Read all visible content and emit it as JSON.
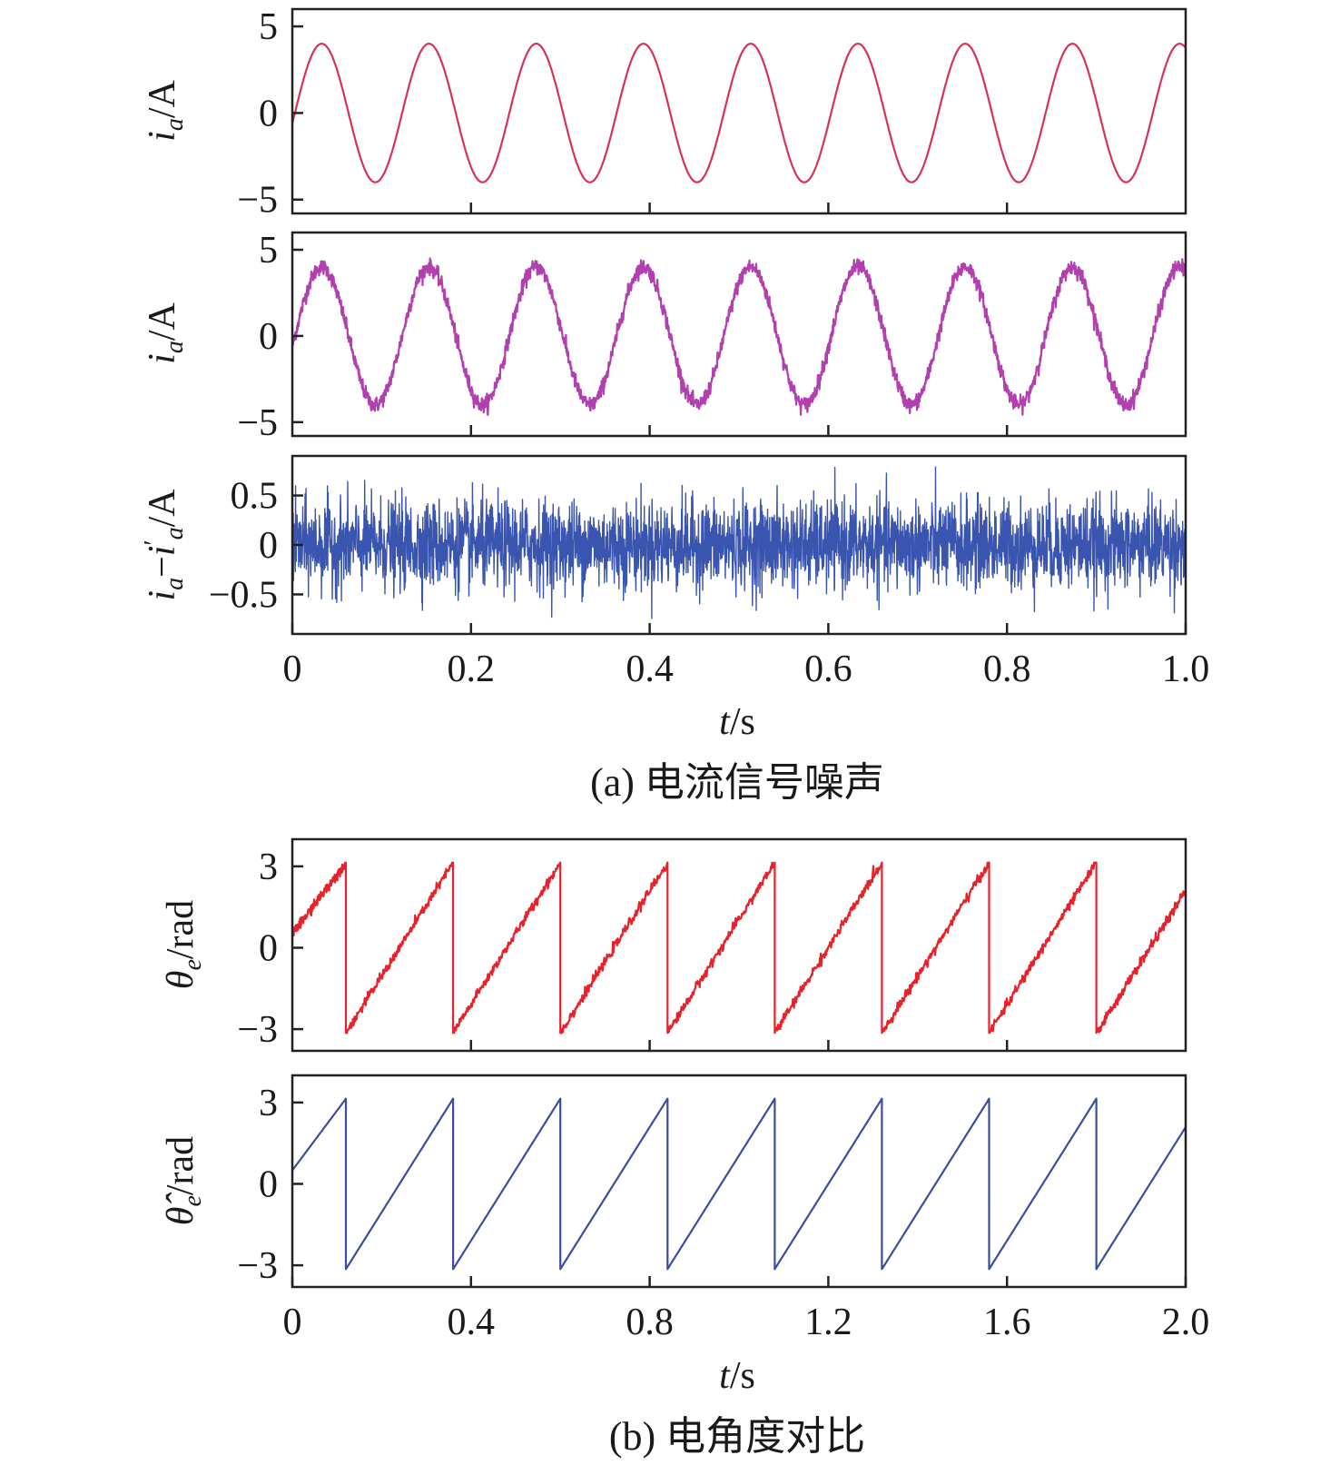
{
  "figure": {
    "caption_a": "(a) 电流信号噪声",
    "caption_b": "(b) 电角度对比"
  },
  "chart_data": [
    {
      "id": "panel-a1",
      "type": "line",
      "ylabel": "i_a/A",
      "ylim": [
        -5.8,
        6.0
      ],
      "yticks": [
        -5,
        0,
        5
      ],
      "ytick_labels": [
        "−5",
        "0",
        "5"
      ],
      "xlim": [
        0,
        1.0
      ],
      "xticks": [
        0.2,
        0.4,
        0.6,
        0.8
      ],
      "series": [
        {
          "color": "#d8325a",
          "kind": "sine",
          "amplitude": 4,
          "frequency_hz": 8.33,
          "initial_value": -0.6,
          "noise": 0
        }
      ]
    },
    {
      "id": "panel-a2",
      "type": "line",
      "ylabel": "i_a'/A",
      "ylim": [
        -5.8,
        6.0
      ],
      "yticks": [
        -5,
        0,
        5
      ],
      "ytick_labels": [
        "−5",
        "0",
        "5"
      ],
      "xlim": [
        0,
        1.0
      ],
      "xticks": [
        0.2,
        0.4,
        0.6,
        0.8
      ],
      "series": [
        {
          "color": "#b23fb0",
          "kind": "sine",
          "amplitude": 4,
          "frequency_hz": 8.33,
          "initial_value": -0.6,
          "noise": 0.45
        }
      ]
    },
    {
      "id": "panel-a3",
      "type": "line",
      "ylabel": "i_a − i_a'/A",
      "ylim": [
        -0.9,
        0.9
      ],
      "yticks": [
        -0.5,
        0,
        0.5
      ],
      "ytick_labels": [
        "−0.5",
        "0",
        "0.5"
      ],
      "xlim": [
        0,
        1.0
      ],
      "xticks": [
        0,
        0.2,
        0.4,
        0.6,
        0.8,
        1.0
      ],
      "xtick_labels": [
        "0",
        "0.2",
        "0.4",
        "0.6",
        "0.8",
        "1.0"
      ],
      "xlabel": "t/s",
      "series": [
        {
          "color": "#3a55b0",
          "kind": "noise",
          "range": [
            -0.8,
            0.8
          ]
        }
      ]
    },
    {
      "id": "panel-b1",
      "type": "line",
      "ylabel": "θ_e/rad",
      "ylim": [
        -3.8,
        4.0
      ],
      "yticks": [
        -3,
        0,
        3
      ],
      "ytick_labels": [
        "−3",
        "0",
        "3"
      ],
      "xlim": [
        0,
        2.0
      ],
      "xticks": [
        0.4,
        0.8,
        1.2,
        1.6
      ],
      "series": [
        {
          "color": "#e8222a",
          "kind": "sawtooth",
          "min": -3.14,
          "max": 3.14,
          "start": 0.5,
          "wrap_times": [
            0.12,
            0.36,
            0.6,
            0.84,
            1.08,
            1.32,
            1.56,
            1.8
          ],
          "end": 2.1,
          "noise": 0.25
        }
      ]
    },
    {
      "id": "panel-b2",
      "type": "line",
      "ylabel": "θ̂_e/rad",
      "ylim": [
        -3.8,
        4.0
      ],
      "yticks": [
        -3,
        0,
        3
      ],
      "ytick_labels": [
        "−3",
        "0",
        "3"
      ],
      "xlim": [
        0,
        2.0
      ],
      "xticks": [
        0,
        0.4,
        0.8,
        1.2,
        1.6,
        2.0
      ],
      "xtick_labels": [
        "0",
        "0.4",
        "0.8",
        "1.2",
        "1.6",
        "2.0"
      ],
      "xlabel": "t/s",
      "series": [
        {
          "color": "#3b4e9e",
          "kind": "sawtooth",
          "min": -3.14,
          "max": 3.14,
          "start": 0.5,
          "wrap_times": [
            0.12,
            0.36,
            0.6,
            0.84,
            1.08,
            1.32,
            1.56,
            1.8
          ],
          "end": 2.1,
          "noise": 0
        }
      ]
    }
  ]
}
